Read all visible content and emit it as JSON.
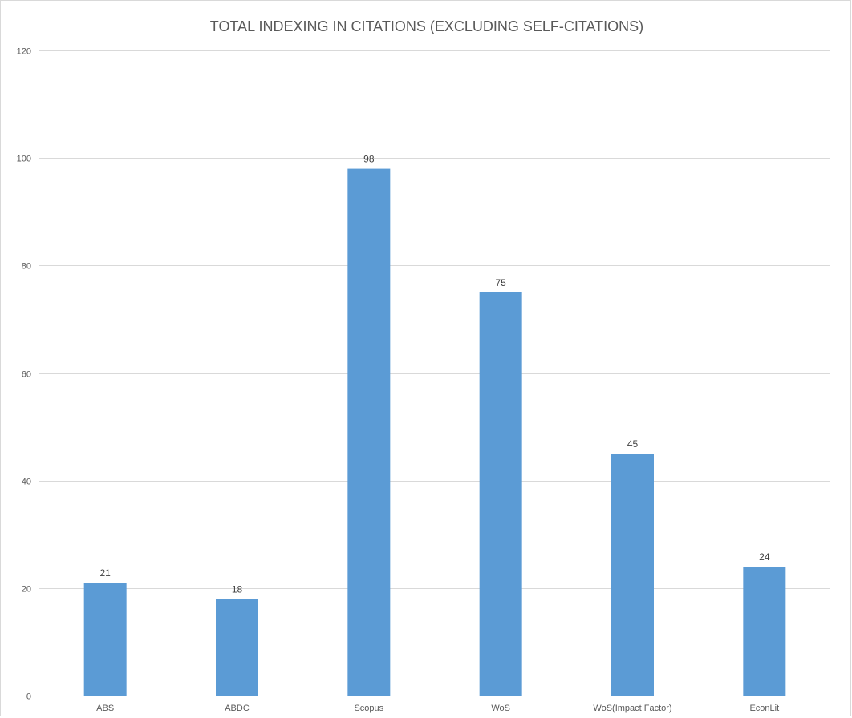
{
  "chart_data": {
    "type": "bar",
    "title": "TOTAL INDEXING IN CITATIONS (EXCLUDING SELF-CITATIONS)",
    "xlabel": "",
    "ylabel": "",
    "categories": [
      "ABS",
      "ABDC",
      "Scopus",
      "WoS",
      "WoS(Impact Factor)",
      "EconLit"
    ],
    "values": [
      21,
      18,
      98,
      75,
      45,
      24
    ],
    "data_labels": [
      "21",
      "18",
      "98",
      "75",
      "45",
      "24"
    ],
    "ylim": [
      0,
      120
    ],
    "yticks": [
      0,
      20,
      40,
      60,
      80,
      100,
      120
    ],
    "grid": true,
    "legend": "none",
    "bar_color": "#5b9bd5",
    "grid_color": "#d9d9d9"
  }
}
